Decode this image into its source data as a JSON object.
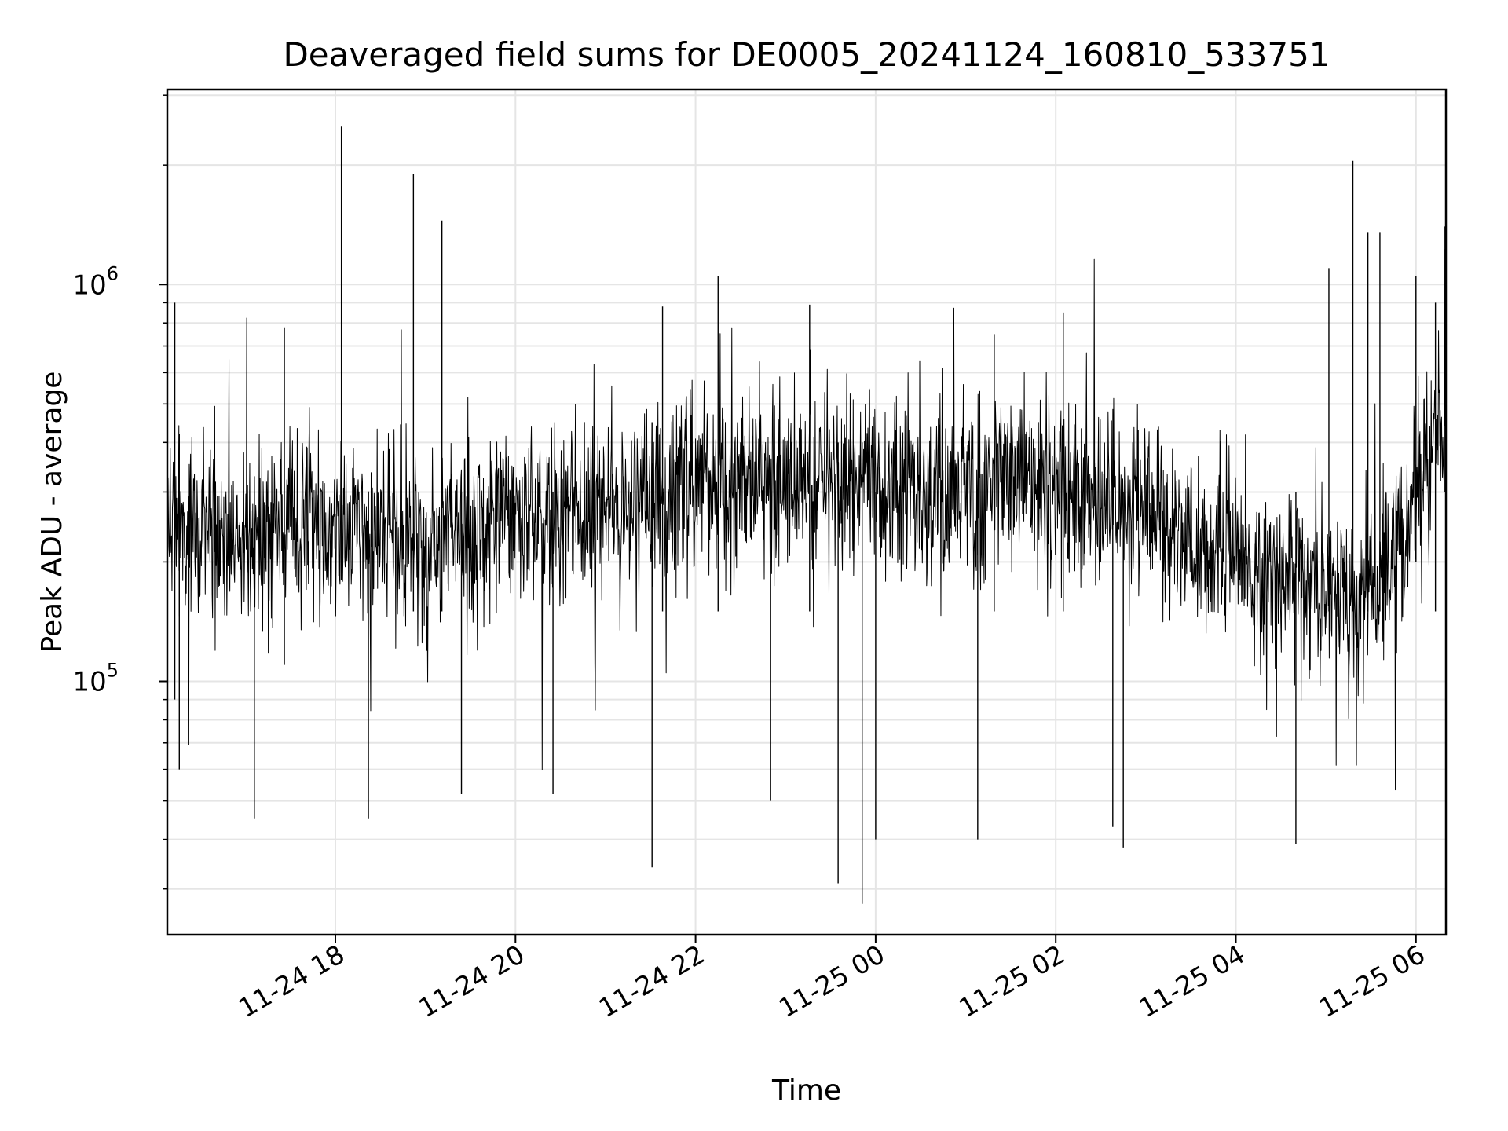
{
  "chart_data": {
    "type": "line",
    "title": "Deaveraged field sums for DE0005_20241124_160810_533751",
    "xlabel": "Time",
    "ylabel": "Peak ADU - average",
    "xlim": [
      "2024-11-24 16:08",
      "2024-11-25 06:20"
    ],
    "ylim": [
      23000,
      3100000
    ],
    "yscale": "log",
    "grid": true,
    "line_color": "#000000",
    "x_ticks": [
      {
        "time": "2024-11-24 18:00",
        "label": "11-24 18"
      },
      {
        "time": "2024-11-24 20:00",
        "label": "11-24 20"
      },
      {
        "time": "2024-11-24 22:00",
        "label": "11-24 22"
      },
      {
        "time": "2024-11-25 00:00",
        "label": "11-25 00"
      },
      {
        "time": "2024-11-25 02:00",
        "label": "11-25 02"
      },
      {
        "time": "2024-11-25 04:00",
        "label": "11-25 04"
      },
      {
        "time": "2024-11-25 06:00",
        "label": "11-25 06"
      }
    ],
    "y_ticks": [
      {
        "value": 100000,
        "base": "10",
        "exp": "5"
      },
      {
        "value": 1000000,
        "base": "10",
        "exp": "6"
      }
    ],
    "series": [
      {
        "x": [
          "2024-11-24 16:10",
          "2024-11-24 16:40",
          "2024-11-24 17:10",
          "2024-11-24 17:40",
          "2024-11-24 18:00",
          "2024-11-24 18:20",
          "2024-11-24 18:50",
          "2024-11-24 19:20",
          "2024-11-24 19:50",
          "2024-11-24 20:20",
          "2024-11-24 20:50",
          "2024-11-24 21:20",
          "2024-11-24 21:50",
          "2024-11-24 22:20",
          "2024-11-24 22:50",
          "2024-11-24 23:20",
          "2024-11-24 23:50",
          "2024-11-25 00:20",
          "2024-11-25 00:50",
          "2024-11-25 01:20",
          "2024-11-25 01:50",
          "2024-11-25 02:20",
          "2024-11-25 02:50",
          "2024-11-25 03:20",
          "2024-11-25 03:50",
          "2024-11-25 04:20",
          "2024-11-25 04:50",
          "2024-11-25 05:20",
          "2024-11-25 05:50",
          "2024-11-25 06:18"
        ],
        "y": [
          220000,
          240000,
          230000,
          245000,
          260000,
          240000,
          235000,
          245000,
          260000,
          265000,
          275000,
          285000,
          300000,
          320000,
          310000,
          320000,
          330000,
          315000,
          300000,
          320000,
          305000,
          290000,
          280000,
          240000,
          215000,
          190000,
          170000,
          160000,
          210000,
          450000
        ]
      }
    ],
    "spikes": [
      {
        "x": "2024-11-24 16:13",
        "low": 90000,
        "high": 900000
      },
      {
        "x": "2024-11-24 16:16",
        "low": 60000,
        "high": 420000
      },
      {
        "x": "2024-11-24 17:06",
        "low": 45000,
        "high": 300000
      },
      {
        "x": "2024-11-24 17:26",
        "low": 110000,
        "high": 780000
      },
      {
        "x": "2024-11-24 18:04",
        "low": 180000,
        "high": 2500000
      },
      {
        "x": "2024-11-24 18:22",
        "low": 45000,
        "high": 300000
      },
      {
        "x": "2024-11-24 18:52",
        "low": 150000,
        "high": 1900000
      },
      {
        "x": "2024-11-24 19:11",
        "low": 150000,
        "high": 1450000
      },
      {
        "x": "2024-11-24 19:24",
        "low": 52000,
        "high": 300000
      },
      {
        "x": "2024-11-24 20:25",
        "low": 52000,
        "high": 300000
      },
      {
        "x": "2024-11-24 21:31",
        "low": 34000,
        "high": 450000
      },
      {
        "x": "2024-11-24 21:38",
        "low": 150000,
        "high": 880000
      },
      {
        "x": "2024-11-24 22:15",
        "low": 150000,
        "high": 1050000
      },
      {
        "x": "2024-11-24 22:50",
        "low": 50000,
        "high": 300000
      },
      {
        "x": "2024-11-24 23:16",
        "low": 150000,
        "high": 890000
      },
      {
        "x": "2024-11-24 23:35",
        "low": 31000,
        "high": 400000
      },
      {
        "x": "2024-11-24 23:51",
        "low": 27500,
        "high": 400000
      },
      {
        "x": "2024-11-25 00:00",
        "low": 40000,
        "high": 300000
      },
      {
        "x": "2024-11-25 01:08",
        "low": 40000,
        "high": 300000
      },
      {
        "x": "2024-11-25 01:19",
        "low": 150000,
        "high": 750000
      },
      {
        "x": "2024-11-25 02:05",
        "low": 150000,
        "high": 850000
      },
      {
        "x": "2024-11-25 02:38",
        "low": 43000,
        "high": 300000
      },
      {
        "x": "2024-11-25 02:45",
        "low": 38000,
        "high": 300000
      },
      {
        "x": "2024-11-25 04:40",
        "low": 39000,
        "high": 300000
      },
      {
        "x": "2024-11-25 05:02",
        "low": 150000,
        "high": 1100000
      },
      {
        "x": "2024-11-25 05:18",
        "low": 150000,
        "high": 2050000
      },
      {
        "x": "2024-11-25 05:28",
        "low": 150000,
        "high": 1350000
      },
      {
        "x": "2024-11-25 05:36",
        "low": 150000,
        "high": 1350000
      },
      {
        "x": "2024-11-25 06:00",
        "low": 200000,
        "high": 1050000
      },
      {
        "x": "2024-11-25 06:13",
        "low": 150000,
        "high": 900000
      },
      {
        "x": "2024-11-25 06:19",
        "low": 300000,
        "high": 1400000
      }
    ]
  }
}
